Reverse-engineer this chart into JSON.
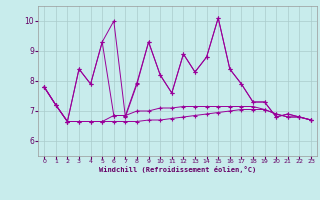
{
  "bg_color": "#c8ecec",
  "line_color": "#990099",
  "grid_color": "#aacccc",
  "xlabel": "Windchill (Refroidissement éolien,°C)",
  "xlabel_color": "#660066",
  "tick_color": "#660066",
  "xlim": [
    -0.5,
    23.5
  ],
  "ylim": [
    5.5,
    10.5
  ],
  "yticks": [
    6,
    7,
    8,
    9,
    10
  ],
  "xticks": [
    0,
    1,
    2,
    3,
    4,
    5,
    6,
    7,
    8,
    9,
    10,
    11,
    12,
    13,
    14,
    15,
    16,
    17,
    18,
    19,
    20,
    21,
    22,
    23
  ],
  "series": [
    [
      7.8,
      7.2,
      6.65,
      8.4,
      7.9,
      9.3,
      10.0,
      6.8,
      7.9,
      9.3,
      8.2,
      7.6,
      8.9,
      8.3,
      8.8,
      10.1,
      8.4,
      7.9,
      7.3,
      7.3,
      6.8,
      6.9,
      6.8,
      6.7
    ],
    [
      7.8,
      7.2,
      6.65,
      6.65,
      6.65,
      6.65,
      6.65,
      6.65,
      6.65,
      6.7,
      6.7,
      6.75,
      6.8,
      6.85,
      6.9,
      6.95,
      7.0,
      7.05,
      7.05,
      7.05,
      6.9,
      6.8,
      6.8,
      6.7
    ],
    [
      7.8,
      7.2,
      6.65,
      8.4,
      7.9,
      9.3,
      6.85,
      6.85,
      7.95,
      9.3,
      8.2,
      7.6,
      8.9,
      8.3,
      8.8,
      10.1,
      8.4,
      7.9,
      7.3,
      7.3,
      6.8,
      6.9,
      6.8,
      6.7
    ],
    [
      7.8,
      7.2,
      6.65,
      6.65,
      6.65,
      6.65,
      6.85,
      6.85,
      7.0,
      7.0,
      7.1,
      7.1,
      7.15,
      7.15,
      7.15,
      7.15,
      7.15,
      7.15,
      7.15,
      7.05,
      6.9,
      6.8,
      6.8,
      6.7
    ]
  ]
}
